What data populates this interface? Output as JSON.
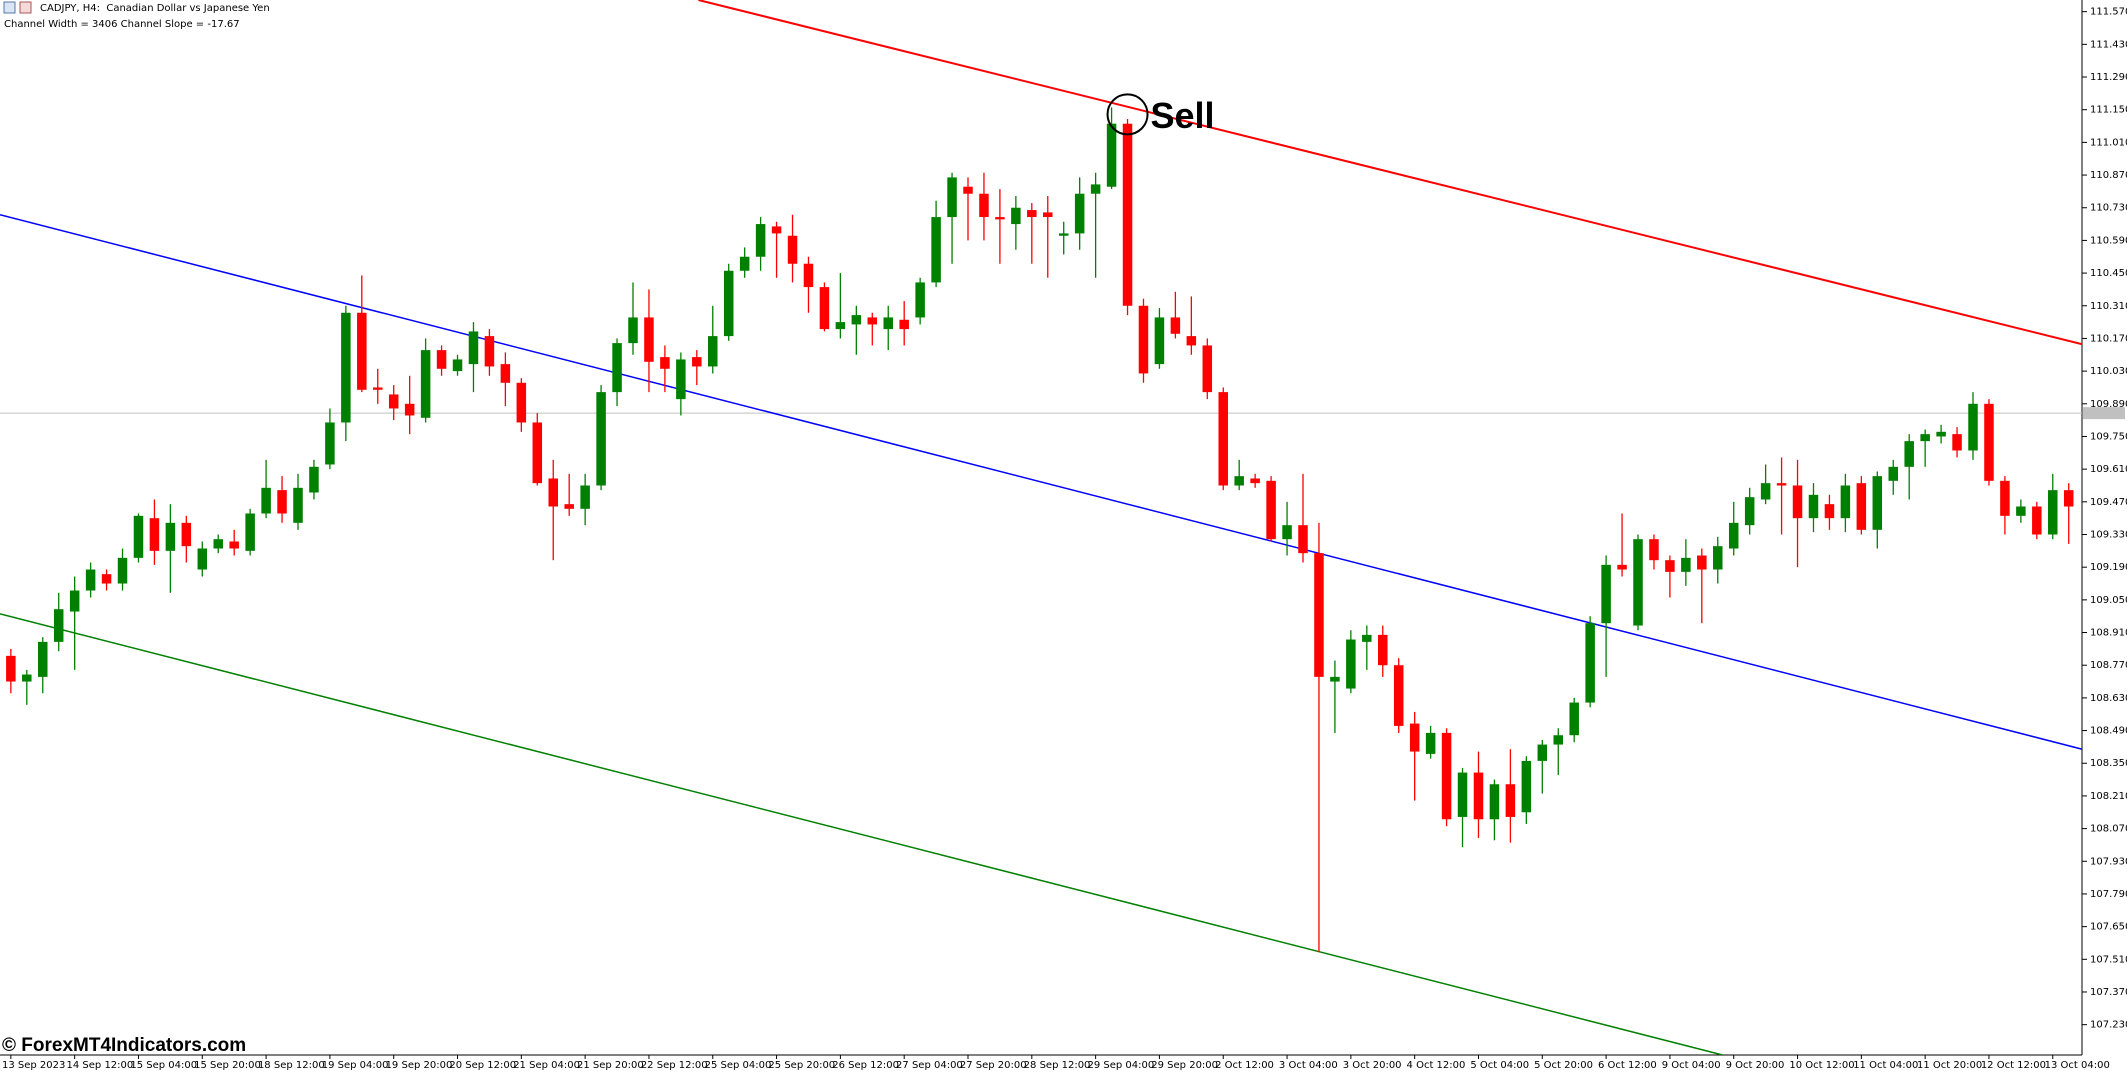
{
  "chart_data": {
    "type": "candlestick",
    "title": "CADJPY, H4:  Canadian Dollar vs Japanese Yen",
    "subtitle": "Channel Width = 3406 Channel Slope = -17.67",
    "categories": [
      "13 Sep 2023",
      null,
      null,
      null,
      "14 Sep 12:00",
      null,
      null,
      null,
      "15 Sep 04:00",
      null,
      null,
      null,
      "15 Sep 20:00",
      null,
      null,
      null,
      "18 Sep 12:00",
      null,
      null,
      null,
      "19 Sep 04:00",
      null,
      null,
      null,
      "19 Sep 20:00",
      null,
      null,
      null,
      "20 Sep 12:00",
      null,
      null,
      null,
      "21 Sep 04:00",
      null,
      null,
      null,
      "21 Sep 20:00",
      null,
      null,
      null,
      "22 Sep 12:00",
      null,
      null,
      null,
      "25 Sep 04:00",
      null,
      null,
      null,
      "25 Sep 20:00",
      null,
      null,
      null,
      "26 Sep 12:00",
      null,
      null,
      null,
      "27 Sep 04:00",
      null,
      null,
      null,
      "27 Sep 20:00",
      null,
      null,
      null,
      "28 Sep 12:00",
      null,
      null,
      null,
      "29 Sep 04:00",
      null,
      null,
      null,
      "29 Sep 20:00",
      null,
      null,
      null,
      "2 Oct 12:00",
      null,
      null,
      null,
      "3 Oct 04:00",
      null,
      null,
      null,
      "3 Oct 20:00",
      null,
      null,
      null,
      "4 Oct 12:00",
      null,
      null,
      null,
      "5 Oct 04:00",
      null,
      null,
      null,
      "5 Oct 20:00",
      null,
      null,
      null,
      "6 Oct 12:00",
      null,
      null,
      null,
      "9 Oct 04:00",
      null,
      null,
      null,
      "9 Oct 20:00",
      null,
      null,
      null,
      "10 Oct 12:00",
      null,
      null,
      null,
      "11 Oct 04:00",
      null,
      null,
      null,
      "11 Oct 20:00",
      null,
      null,
      null,
      "12 Oct 12:00",
      null,
      null,
      null,
      "13 Oct 04:00",
      null
    ],
    "open": [
      108.81,
      108.7,
      108.72,
      108.87,
      109.0,
      109.09,
      109.16,
      109.12,
      109.23,
      109.4,
      109.26,
      109.38,
      109.18,
      109.27,
      109.3,
      109.26,
      109.42,
      109.52,
      109.38,
      109.51,
      109.63,
      109.81,
      110.28,
      109.96,
      109.93,
      109.89,
      109.83,
      110.12,
      110.03,
      110.06,
      110.18,
      110.06,
      109.98,
      109.81,
      109.57,
      109.46,
      109.44,
      109.54,
      109.94,
      110.15,
      110.26,
      110.09,
      109.91,
      110.09,
      110.05,
      110.18,
      110.46,
      110.52,
      110.65,
      110.61,
      110.49,
      110.39,
      110.21,
      110.23,
      110.26,
      110.21,
      110.25,
      110.26,
      110.41,
      110.69,
      110.82,
      110.79,
      110.69,
      110.66,
      110.72,
      110.71,
      110.61,
      110.62,
      110.79,
      110.82,
      111.09,
      110.31,
      110.06,
      110.26,
      110.18,
      110.14,
      109.94,
      109.54,
      109.57,
      109.56,
      109.31,
      109.37,
      109.25,
      108.7,
      108.67,
      108.87,
      108.9,
      108.77,
      108.52,
      108.39,
      108.48,
      108.12,
      108.31,
      108.11,
      108.26,
      108.14,
      108.36,
      108.43,
      108.47,
      108.61,
      108.95,
      109.2,
      108.94,
      109.31,
      109.22,
      109.17,
      109.24,
      109.18,
      109.27,
      109.37,
      109.48,
      109.55,
      109.54,
      109.4,
      109.46,
      109.4,
      109.55,
      109.35,
      109.56,
      109.62,
      109.73,
      109.75,
      109.76,
      109.69,
      109.89,
      109.56,
      109.41,
      109.45,
      109.33,
      109.52
    ],
    "high": [
      108.84,
      108.75,
      108.89,
      109.08,
      109.15,
      109.21,
      109.18,
      109.27,
      109.42,
      109.48,
      109.46,
      109.41,
      109.3,
      109.33,
      109.35,
      109.44,
      109.65,
      109.58,
      109.59,
      109.65,
      109.87,
      110.31,
      110.44,
      110.04,
      109.97,
      110.01,
      110.17,
      110.14,
      110.1,
      110.24,
      110.21,
      110.11,
      110.0,
      109.85,
      109.65,
      109.59,
      109.59,
      109.97,
      110.17,
      110.41,
      110.38,
      110.14,
      110.11,
      110.12,
      110.31,
      110.49,
      110.56,
      110.69,
      110.67,
      110.7,
      110.52,
      110.41,
      110.45,
      110.31,
      110.28,
      110.31,
      110.33,
      110.43,
      110.76,
      110.88,
      110.86,
      110.88,
      110.81,
      110.78,
      110.75,
      110.78,
      110.67,
      110.86,
      110.88,
      111.16,
      111.11,
      110.34,
      110.3,
      110.37,
      110.35,
      110.17,
      109.96,
      109.65,
      109.59,
      109.58,
      109.47,
      109.59,
      109.38,
      108.79,
      108.92,
      108.94,
      108.94,
      108.8,
      108.57,
      108.51,
      108.5,
      108.33,
      108.4,
      108.28,
      108.41,
      108.38,
      108.45,
      108.5,
      108.63,
      108.98,
      109.24,
      109.42,
      109.33,
      109.33,
      109.24,
      109.31,
      109.27,
      109.32,
      109.47,
      109.53,
      109.63,
      109.66,
      109.65,
      109.55,
      109.5,
      109.59,
      109.58,
      109.6,
      109.65,
      109.76,
      109.78,
      109.8,
      109.79,
      109.94,
      109.91,
      109.58,
      109.48,
      109.47,
      109.59,
      109.55
    ],
    "low": [
      108.65,
      108.6,
      108.65,
      108.83,
      108.75,
      109.06,
      109.09,
      109.09,
      109.21,
      109.2,
      109.08,
      109.21,
      109.15,
      109.25,
      109.24,
      109.24,
      109.4,
      109.38,
      109.35,
      109.48,
      109.61,
      109.73,
      109.94,
      109.89,
      109.82,
      109.76,
      109.81,
      110.01,
      110.01,
      109.94,
      110.01,
      109.88,
      109.77,
      109.54,
      109.22,
      109.41,
      109.37,
      109.52,
      109.88,
      110.1,
      109.94,
      109.94,
      109.84,
      109.97,
      110.02,
      110.16,
      110.43,
      110.46,
      110.43,
      110.41,
      110.28,
      110.2,
      110.17,
      110.1,
      110.14,
      110.12,
      110.14,
      110.23,
      110.39,
      110.49,
      110.59,
      110.59,
      110.49,
      110.55,
      110.49,
      110.43,
      110.53,
      110.55,
      110.43,
      110.81,
      110.27,
      109.98,
      110.04,
      110.17,
      110.1,
      109.91,
      109.52,
      109.52,
      109.53,
      109.3,
      109.24,
      109.21,
      107.54,
      108.48,
      108.65,
      108.75,
      108.72,
      108.48,
      108.19,
      108.37,
      108.08,
      107.99,
      108.03,
      108.02,
      108.01,
      108.09,
      108.22,
      108.3,
      108.44,
      108.59,
      108.72,
      109.15,
      108.92,
      109.18,
      109.06,
      109.11,
      108.95,
      109.12,
      109.24,
      109.33,
      109.46,
      109.33,
      109.19,
      109.34,
      109.35,
      109.34,
      109.33,
      109.27,
      109.5,
      109.48,
      109.62,
      109.72,
      109.66,
      109.65,
      109.54,
      109.33,
      109.38,
      109.31,
      109.31,
      109.29
    ],
    "close": [
      108.7,
      108.73,
      108.87,
      109.01,
      109.09,
      109.18,
      109.12,
      109.23,
      109.41,
      109.26,
      109.38,
      109.28,
      109.27,
      109.31,
      109.27,
      109.42,
      109.53,
      109.42,
      109.53,
      109.62,
      109.81,
      110.28,
      109.95,
      109.95,
      109.87,
      109.84,
      110.12,
      110.04,
      110.08,
      110.2,
      110.05,
      109.98,
      109.81,
      109.55,
      109.45,
      109.44,
      109.54,
      109.94,
      110.15,
      110.26,
      110.07,
      110.04,
      110.08,
      110.05,
      110.18,
      110.46,
      110.52,
      110.66,
      110.62,
      110.49,
      110.39,
      110.21,
      110.24,
      110.27,
      110.23,
      110.26,
      110.21,
      110.41,
      110.69,
      110.86,
      110.79,
      110.69,
      110.68,
      110.73,
      110.69,
      110.69,
      110.62,
      110.79,
      110.83,
      111.09,
      110.31,
      110.02,
      110.26,
      110.19,
      110.14,
      109.94,
      109.54,
      109.58,
      109.55,
      109.31,
      109.37,
      109.25,
      108.72,
      108.72,
      108.88,
      108.9,
      108.77,
      108.51,
      108.4,
      108.48,
      108.11,
      108.31,
      108.11,
      108.26,
      108.12,
      108.36,
      108.43,
      108.47,
      108.61,
      108.95,
      109.2,
      109.18,
      109.31,
      109.22,
      109.17,
      109.23,
      109.18,
      109.28,
      109.38,
      109.49,
      109.55,
      109.54,
      109.4,
      109.5,
      109.4,
      109.54,
      109.35,
      109.58,
      109.62,
      109.73,
      109.76,
      109.77,
      109.69,
      109.89,
      109.56,
      109.41,
      109.45,
      109.33,
      109.52,
      109.45
    ],
    "up_color": "#008000",
    "down_color": "#ff0000",
    "ylim": [
      107.1,
      111.62
    ],
    "yticks": [
      {
        "value": 111.57,
        "label": "111.570"
      },
      {
        "value": 111.43,
        "label": "111.430"
      },
      {
        "value": 111.29,
        "label": "111.290"
      },
      {
        "value": 111.15,
        "label": "111.150"
      },
      {
        "value": 111.01,
        "label": "111.010"
      },
      {
        "value": 110.87,
        "label": "110.870"
      },
      {
        "value": 110.73,
        "label": "110.730"
      },
      {
        "value": 110.59,
        "label": "110.590"
      },
      {
        "value": 110.45,
        "label": "110.450"
      },
      {
        "value": 110.31,
        "label": "110.310"
      },
      {
        "value": 110.17,
        "label": "110.170"
      },
      {
        "value": 110.03,
        "label": "110.030"
      },
      {
        "value": 109.89,
        "label": "109.890"
      },
      {
        "value": 109.75,
        "label": "109.750"
      },
      {
        "value": 109.61,
        "label": "109.610"
      },
      {
        "value": 109.47,
        "label": "109.470"
      },
      {
        "value": 109.33,
        "label": "109.330"
      },
      {
        "value": 109.19,
        "label": "109.190"
      },
      {
        "value": 109.05,
        "label": "109.050"
      },
      {
        "value": 108.91,
        "label": "108.910"
      },
      {
        "value": 108.77,
        "label": "108.770"
      },
      {
        "value": 108.63,
        "label": "108.630"
      },
      {
        "value": 108.49,
        "label": "108.490"
      },
      {
        "value": 108.35,
        "label": "108.350"
      },
      {
        "value": 108.21,
        "label": "108.210"
      },
      {
        "value": 108.07,
        "label": "108.070"
      },
      {
        "value": 107.93,
        "label": "107.930"
      },
      {
        "value": 107.79,
        "label": "107.790"
      },
      {
        "value": 107.65,
        "label": "107.650"
      },
      {
        "value": 107.51,
        "label": "107.510"
      },
      {
        "value": 107.37,
        "label": "107.370"
      },
      {
        "value": 107.23,
        "label": "107.230"
      }
    ],
    "grid": false,
    "price_line": 109.85,
    "channels": [
      {
        "color": "#ff0000",
        "x": [
          43.1,
          129.85
        ],
        "values": [
          111.62,
          110.145
        ]
      },
      {
        "color": "#0000ff",
        "x": [
          -0.68,
          129.85
        ],
        "values": [
          110.7,
          108.41
        ]
      },
      {
        "color": "#008000",
        "x": [
          -0.68,
          107.3
        ],
        "values": [
          108.99,
          107.1
        ]
      }
    ],
    "annotations": [
      {
        "text": "Sell",
        "x": 70,
        "y": 111.13
      }
    ]
  },
  "watermark": "© ForexMT4Indicators.com"
}
